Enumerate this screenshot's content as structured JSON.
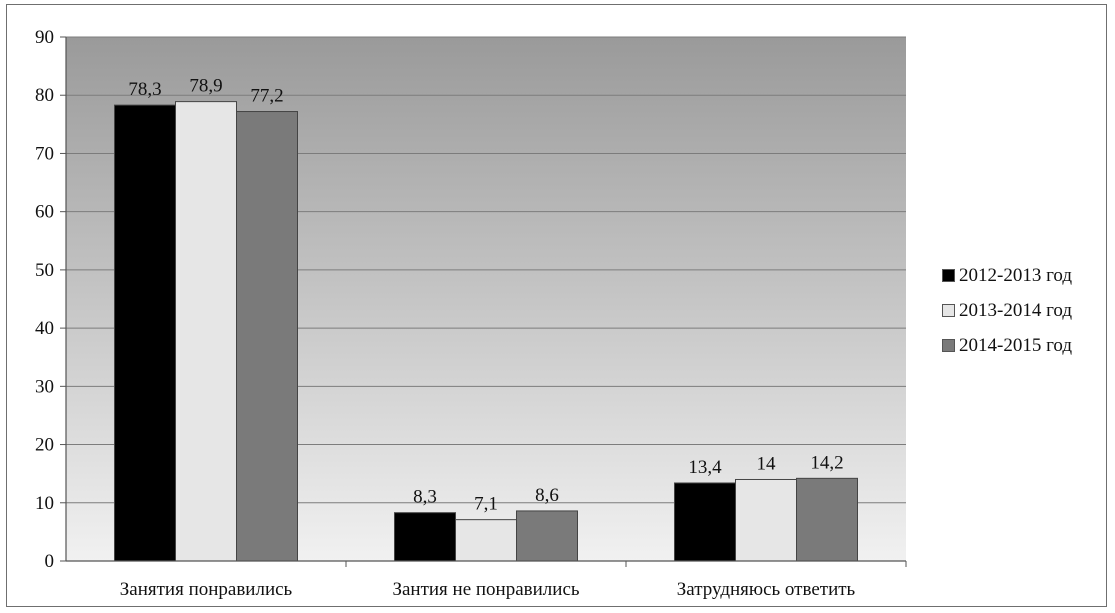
{
  "chart_data": {
    "type": "bar",
    "title": "",
    "xlabel": "",
    "ylabel": "",
    "ylim": [
      0,
      90
    ],
    "yticks": [
      "0",
      "10",
      "20",
      "30",
      "40",
      "50",
      "60",
      "70",
      "80",
      "90"
    ],
    "grid": true,
    "legend_position": "right",
    "categories": [
      "Занятия понравились",
      "Зантия не понравились",
      "Затрудняюсь ответить"
    ],
    "series": [
      {
        "name": "2012-2013 год",
        "color": "#000000",
        "values": [
          78.3,
          8.3,
          13.4
        ],
        "labels": [
          "78,3",
          "8,3",
          "13,4"
        ]
      },
      {
        "name": "2013-2014 год",
        "color": "#e6e6e6",
        "values": [
          78.9,
          7.1,
          14.0
        ],
        "labels": [
          "78,9",
          "7,1",
          "14"
        ]
      },
      {
        "name": "2014-2015 год",
        "color": "#7a7a7a",
        "values": [
          77.2,
          8.6,
          14.2
        ],
        "labels": [
          "77,2",
          "8,6",
          "14,2"
        ]
      }
    ]
  }
}
